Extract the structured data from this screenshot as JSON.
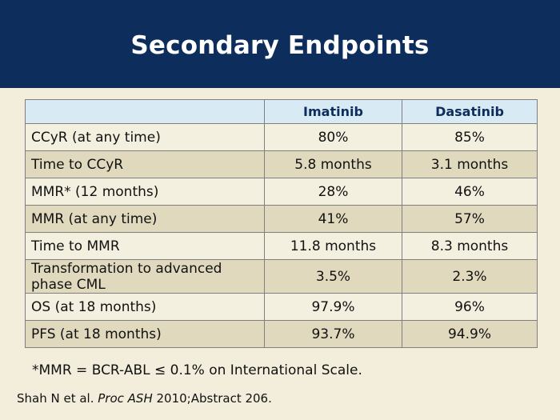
{
  "slide": {
    "title": "Secondary Endpoints"
  },
  "table": {
    "headers": [
      "",
      "Imatinib",
      "Dasatinib"
    ],
    "rows": [
      {
        "label": "CCyR (at any time)",
        "imatinib": "80%",
        "dasatinib": "85%"
      },
      {
        "label": "Time to CCyR",
        "imatinib": "5.8 months",
        "dasatinib": "3.1 months"
      },
      {
        "label": "MMR* (12 months)",
        "imatinib": "28%",
        "dasatinib": "46%"
      },
      {
        "label": "MMR (at any time)",
        "imatinib": "41%",
        "dasatinib": "57%"
      },
      {
        "label": "Time to MMR",
        "imatinib": "11.8 months",
        "dasatinib": "8.3 months"
      },
      {
        "label_line1": "Transformation to advanced",
        "label_line2": "phase CML",
        "imatinib": "3.5%",
        "dasatinib": "2.3%"
      },
      {
        "label": "OS (at 18 months)",
        "imatinib": "97.9%",
        "dasatinib": "96%"
      },
      {
        "label": "PFS (at 18 months)",
        "imatinib": "93.7%",
        "dasatinib": "94.9%"
      }
    ]
  },
  "footnote": "*MMR = BCR-ABL ≤ 0.1% on International Scale.",
  "citation": {
    "authors": "Shah N et al. ",
    "journal": "Proc ASH",
    "rest": " 2010;Abstract 206."
  }
}
